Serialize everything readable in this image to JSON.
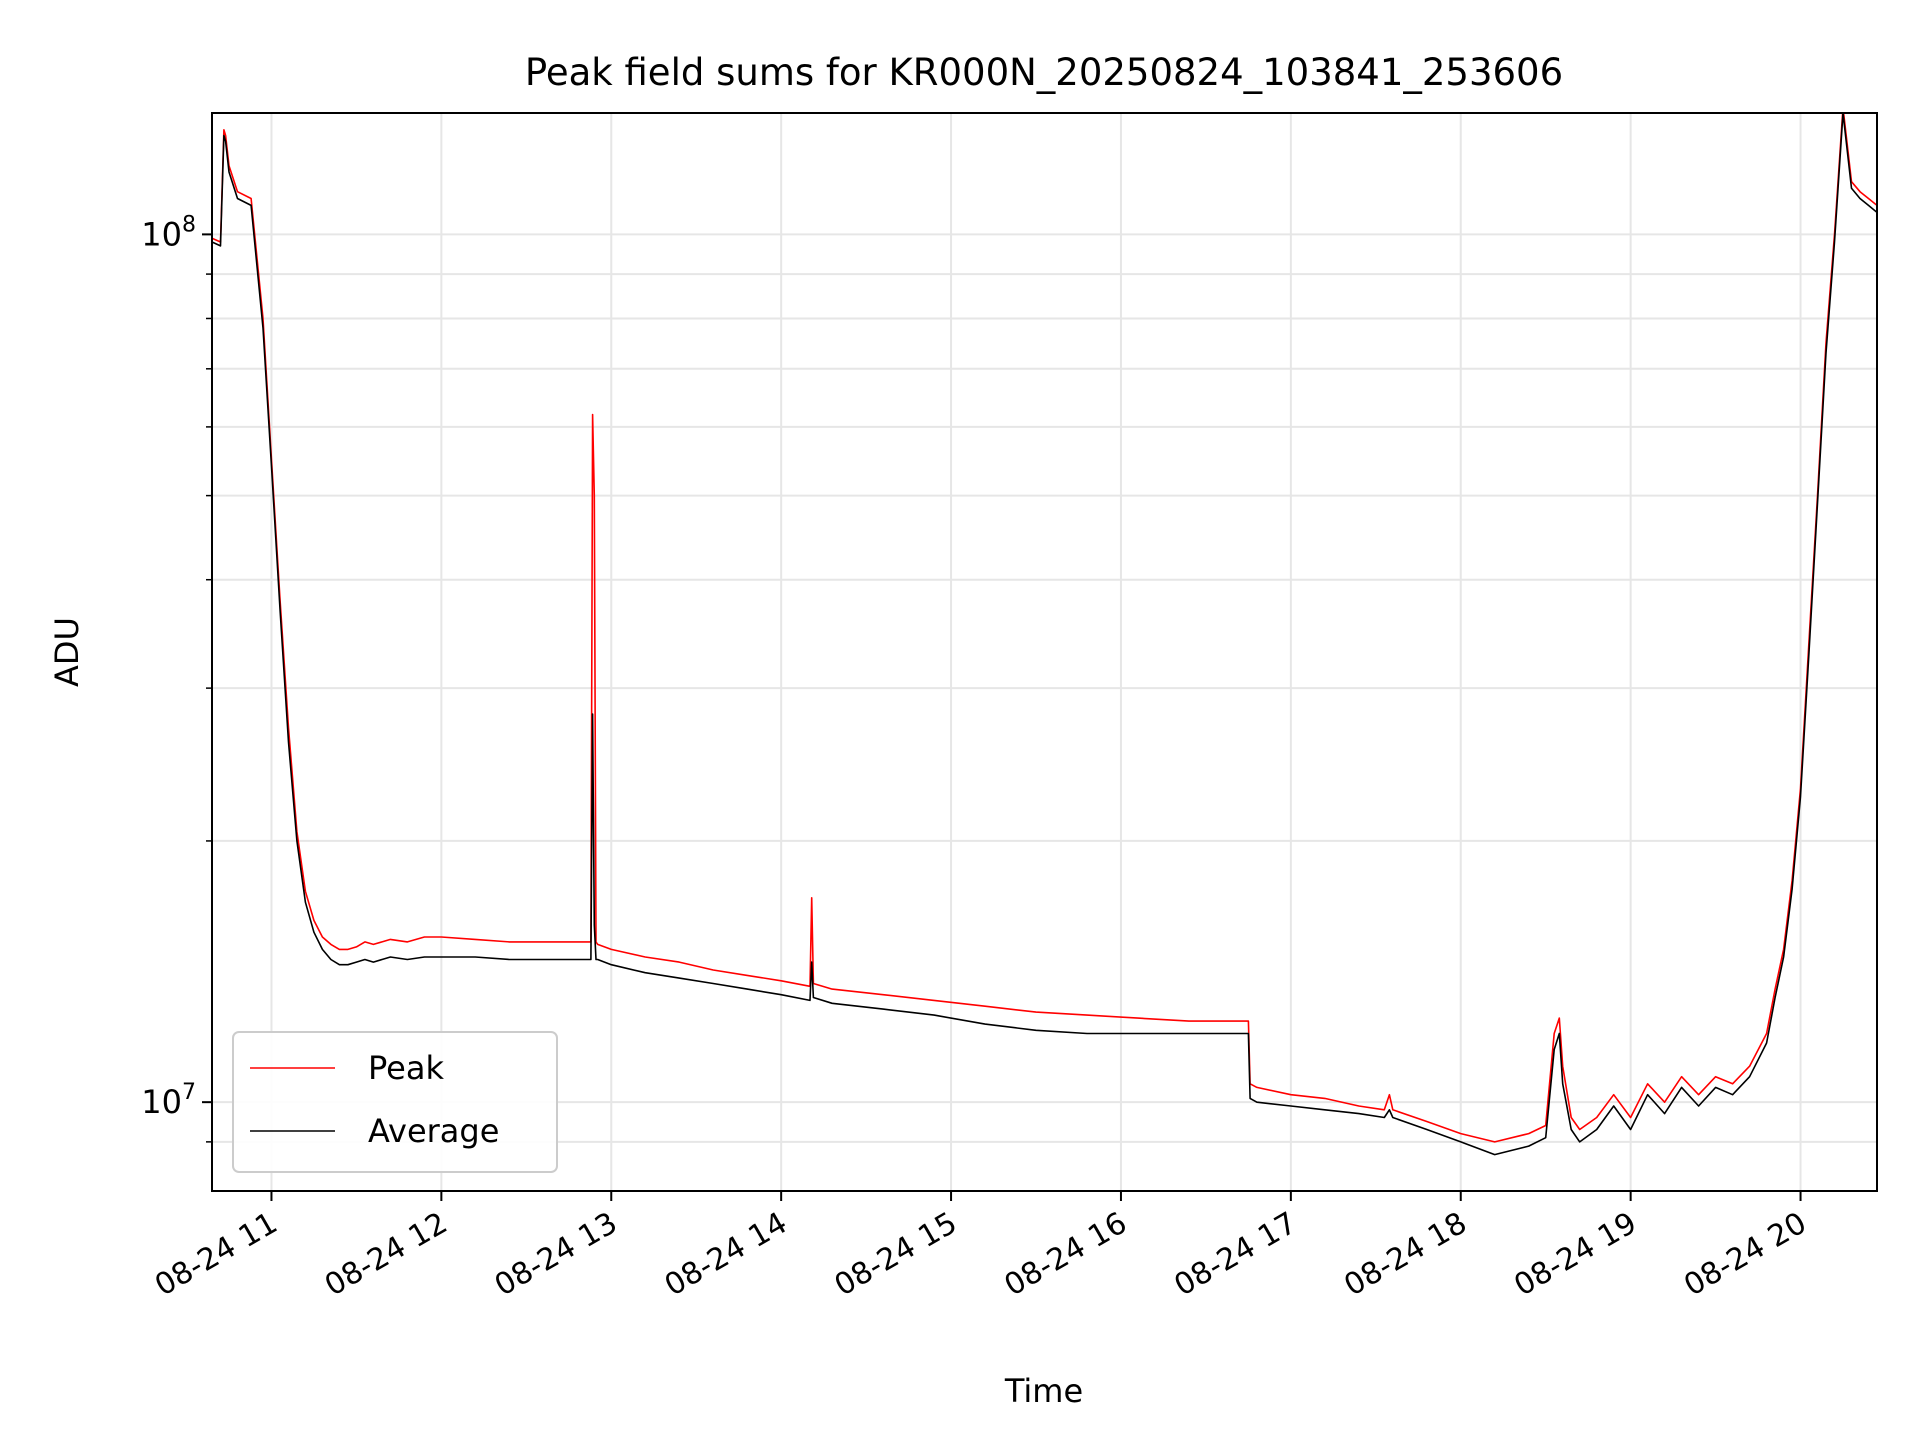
{
  "chart_data": {
    "type": "line",
    "title": "Peak field sums for KR000N_20250824_103841_253606",
    "xlabel": "Time",
    "ylabel": "ADU",
    "x_unit": "hours of 2025-08-24 (decimal)",
    "xlim": [
      10.65,
      20.45
    ],
    "ylim": [
      7900000.0,
      138000000.0
    ],
    "yscale": "log",
    "grid": true,
    "legend_position": "lower-left",
    "x_ticks": [
      {
        "value": 11,
        "label": "08-24 11"
      },
      {
        "value": 12,
        "label": "08-24 12"
      },
      {
        "value": 13,
        "label": "08-24 13"
      },
      {
        "value": 14,
        "label": "08-24 14"
      },
      {
        "value": 15,
        "label": "08-24 15"
      },
      {
        "value": 16,
        "label": "08-24 16"
      },
      {
        "value": 17,
        "label": "08-24 17"
      },
      {
        "value": 18,
        "label": "08-24 18"
      },
      {
        "value": 19,
        "label": "08-24 19"
      },
      {
        "value": 20,
        "label": "08-24 20"
      }
    ],
    "y_major_ticks": [
      {
        "value": 10000000,
        "base": "10",
        "exp": "7"
      },
      {
        "value": 100000000,
        "base": "10",
        "exp": "8"
      }
    ],
    "y_minor_ticks": [
      9000000,
      20000000,
      30000000,
      40000000,
      50000000,
      60000000,
      70000000,
      80000000,
      90000000
    ],
    "series": [
      {
        "name": "Peak",
        "color": "#ff0000",
        "x": [
          10.65,
          10.7,
          10.72,
          10.73,
          10.75,
          10.8,
          10.88,
          10.95,
          11.0,
          11.05,
          11.1,
          11.15,
          11.2,
          11.25,
          11.3,
          11.35,
          11.4,
          11.45,
          11.5,
          11.55,
          11.6,
          11.7,
          11.8,
          11.9,
          12.0,
          12.2,
          12.4,
          12.6,
          12.8,
          12.85,
          12.88,
          12.89,
          12.9,
          12.91,
          12.92,
          13.0,
          13.2,
          13.4,
          13.6,
          13.8,
          14.0,
          14.17,
          14.18,
          14.19,
          14.3,
          14.6,
          14.9,
          15.2,
          15.5,
          15.8,
          16.1,
          16.4,
          16.7,
          16.75,
          16.76,
          16.8,
          17.0,
          17.2,
          17.4,
          17.55,
          17.58,
          17.6,
          17.8,
          18.0,
          18.2,
          18.4,
          18.5,
          18.55,
          18.58,
          18.6,
          18.65,
          18.7,
          18.8,
          18.9,
          19.0,
          19.1,
          19.2,
          19.3,
          19.4,
          19.5,
          19.6,
          19.7,
          19.8,
          19.85,
          19.9,
          19.95,
          20.0,
          20.05,
          20.1,
          20.15,
          20.2,
          20.25,
          20.3,
          20.35,
          20.4,
          20.45
        ],
        "values": [
          99000000.0,
          98000000.0,
          132000000.0,
          130000000.0,
          120000000.0,
          112000000.0,
          110000000.0,
          80000000.0,
          55000000.0,
          38000000.0,
          27000000.0,
          20500000.0,
          17500000.0,
          16200000.0,
          15500000.0,
          15200000.0,
          15000000.0,
          15000000.0,
          15100000.0,
          15300000.0,
          15200000.0,
          15400000.0,
          15300000.0,
          15500000.0,
          15500000.0,
          15400000.0,
          15300000.0,
          15300000.0,
          15300000.0,
          15300000.0,
          15300000.0,
          62000000.0,
          50000000.0,
          15300000.0,
          15200000.0,
          15000000.0,
          14700000.0,
          14500000.0,
          14200000.0,
          14000000.0,
          13800000.0,
          13600000.0,
          17200000.0,
          13700000.0,
          13500000.0,
          13300000.0,
          13100000.0,
          12900000.0,
          12700000.0,
          12600000.0,
          12500000.0,
          12400000.0,
          12400000.0,
          12400000.0,
          10500000.0,
          10400000.0,
          10200000.0,
          10100000.0,
          9900000.0,
          9800000.0,
          10200000.0,
          9800000.0,
          9500000.0,
          9200000.0,
          9000000.0,
          9200000.0,
          9400000.0,
          12000000.0,
          12500000.0,
          11000000.0,
          9600000.0,
          9300000.0,
          9600000.0,
          10200000.0,
          9600000.0,
          10500000.0,
          10000000.0,
          10700000.0,
          10200000.0,
          10700000.0,
          10500000.0,
          11000000.0,
          12000000.0,
          13500000.0,
          15000000.0,
          18000000.0,
          23000000.0,
          34000000.0,
          50000000.0,
          75000000.0,
          100000000.0,
          140000000.0,
          115000000.0,
          112000000.0,
          110000000.0,
          108000000.0
        ]
      },
      {
        "name": "Average",
        "color": "#000000",
        "x": [
          10.65,
          10.7,
          10.72,
          10.73,
          10.75,
          10.8,
          10.88,
          10.95,
          11.0,
          11.05,
          11.1,
          11.15,
          11.2,
          11.25,
          11.3,
          11.35,
          11.4,
          11.45,
          11.5,
          11.55,
          11.6,
          11.7,
          11.8,
          11.9,
          12.0,
          12.2,
          12.4,
          12.6,
          12.8,
          12.85,
          12.88,
          12.89,
          12.9,
          12.91,
          12.92,
          13.0,
          13.2,
          13.4,
          13.6,
          13.8,
          14.0,
          14.17,
          14.18,
          14.19,
          14.3,
          14.6,
          14.9,
          15.2,
          15.5,
          15.8,
          16.1,
          16.4,
          16.7,
          16.75,
          16.76,
          16.8,
          17.0,
          17.2,
          17.4,
          17.55,
          17.58,
          17.6,
          17.8,
          18.0,
          18.2,
          18.4,
          18.5,
          18.55,
          18.58,
          18.6,
          18.65,
          18.7,
          18.8,
          18.9,
          19.0,
          19.1,
          19.2,
          19.3,
          19.4,
          19.5,
          19.6,
          19.7,
          19.8,
          19.85,
          19.9,
          19.95,
          20.0,
          20.05,
          20.1,
          20.15,
          20.2,
          20.25,
          20.3,
          20.35,
          20.4,
          20.45
        ],
        "values": [
          98000000.0,
          97000000.0,
          130000000.0,
          128000000.0,
          118000000.0,
          110000000.0,
          108000000.0,
          78000000.0,
          54000000.0,
          37000000.0,
          26000000.0,
          20000000.0,
          17000000.0,
          15700000.0,
          15000000.0,
          14600000.0,
          14400000.0,
          14400000.0,
          14500000.0,
          14600000.0,
          14500000.0,
          14700000.0,
          14600000.0,
          14700000.0,
          14700000.0,
          14700000.0,
          14600000.0,
          14600000.0,
          14600000.0,
          14600000.0,
          14600000.0,
          28000000.0,
          16000000.0,
          14600000.0,
          14600000.0,
          14400000.0,
          14100000.0,
          13900000.0,
          13700000.0,
          13500000.0,
          13300000.0,
          13100000.0,
          14500000.0,
          13200000.0,
          13000000.0,
          12800000.0,
          12600000.0,
          12300000.0,
          12100000.0,
          12000000.0,
          12000000.0,
          12000000.0,
          12000000.0,
          12000000.0,
          10100000.0,
          10000000.0,
          9900000.0,
          9800000.0,
          9700000.0,
          9600000.0,
          9800000.0,
          9600000.0,
          9300000.0,
          9000000.0,
          8700000.0,
          8900000.0,
          9100000.0,
          11500000.0,
          12000000.0,
          10500000.0,
          9300000.0,
          9000000.0,
          9300000.0,
          9900000.0,
          9300000.0,
          10200000.0,
          9700000.0,
          10400000.0,
          9900000.0,
          10400000.0,
          10200000.0,
          10700000.0,
          11700000.0,
          13200000.0,
          14700000.0,
          17600000.0,
          22500000.0,
          33000000.0,
          49000000.0,
          73000000.0,
          98000000.0,
          138000000.0,
          113000000.0,
          110000000.0,
          108000000.0,
          106000000.0
        ]
      }
    ]
  }
}
